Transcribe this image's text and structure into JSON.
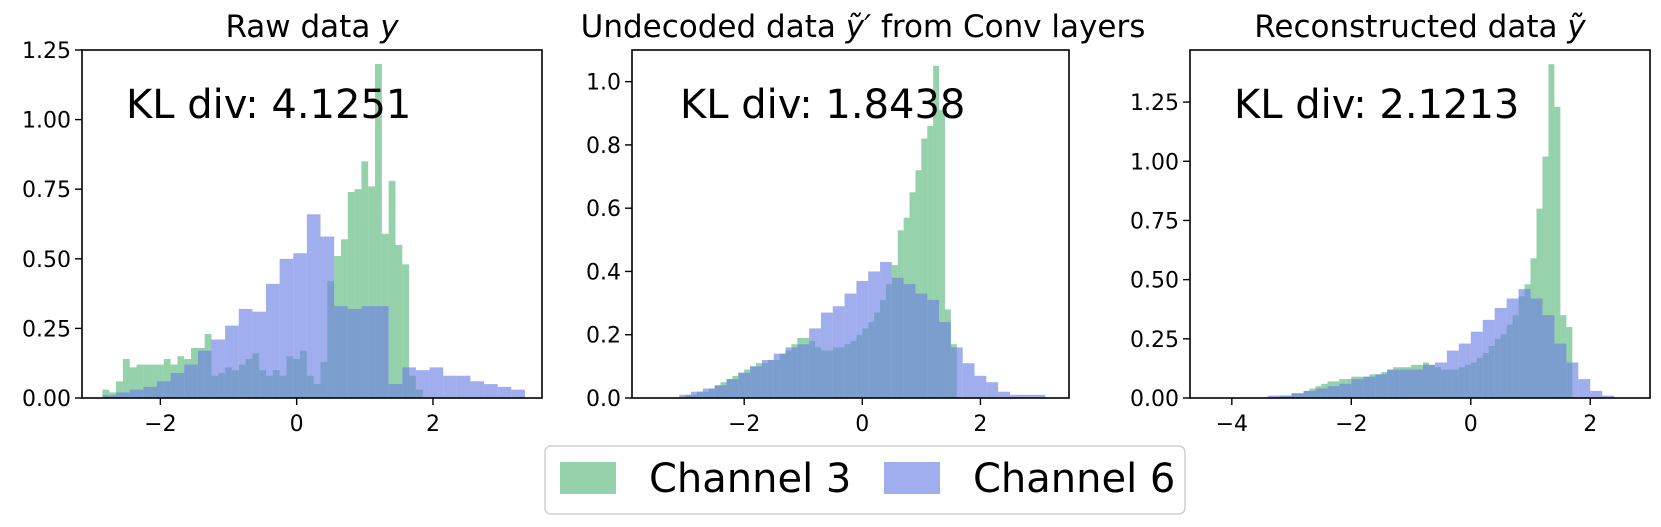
{
  "chart_data": [
    {
      "type": "histogram",
      "title": "Raw data y",
      "title_prefix": "Raw data ",
      "title_symbol": "y",
      "annotation": "KL div: 4.1251",
      "xlim": [
        -3.15,
        3.6
      ],
      "ylim": [
        0,
        1.25
      ],
      "xticks": [
        -2,
        0,
        2
      ],
      "xtick_labels": [
        "−2",
        "0",
        "2"
      ],
      "yticks": [
        0,
        0.25,
        0.5,
        0.75,
        1.0,
        1.25
      ],
      "ytick_labels": [
        "0.00",
        "0.25",
        "0.50",
        "0.75",
        "1.00",
        "1.25"
      ],
      "series": [
        {
          "name": "Channel 3",
          "bin_start": -2.85,
          "bin_width": 0.1,
          "values": [
            0.03,
            0.02,
            0.06,
            0.14,
            0.11,
            0.12,
            0.12,
            0.12,
            0.12,
            0.14,
            0.12,
            0.15,
            0.14,
            0.18,
            0.18,
            0.23,
            0.08,
            0.09,
            0.11,
            0.1,
            0.12,
            0.14,
            0.16,
            0.1,
            0.08,
            0.1,
            0.08,
            0.15,
            0.14,
            0.17,
            0.08,
            0.05,
            0.13,
            0.42,
            0.51,
            0.57,
            0.74,
            0.75,
            0.85,
            0.76,
            1.2,
            0.59,
            0.78,
            0.55,
            0.48,
            0.08,
            0.03
          ]
        },
        {
          "name": "Channel 6",
          "bin_start": -2.85,
          "bin_width": 0.2,
          "values": [
            0.01,
            0.02,
            0.03,
            0.04,
            0.06,
            0.09,
            0.12,
            0.17,
            0.21,
            0.26,
            0.32,
            0.31,
            0.41,
            0.5,
            0.52,
            0.66,
            0.58,
            0.33,
            0.32,
            0.33,
            0.33,
            0.05,
            0.11,
            0.1,
            0.11,
            0.08,
            0.08,
            0.06,
            0.05,
            0.04,
            0.03
          ]
        }
      ]
    },
    {
      "type": "histogram",
      "title": "Undecoded data ỹ′ from Conv layers",
      "title_prefix": "Undecoded data ",
      "title_symbol": "ỹ′",
      "title_suffix": " from Conv layers",
      "annotation": "KL div: 1.8438",
      "xlim": [
        -3.9,
        3.5
      ],
      "ylim": [
        0,
        1.1
      ],
      "xticks": [
        -2,
        0,
        2
      ],
      "xtick_labels": [
        "−2",
        "0",
        "2"
      ],
      "yticks": [
        0,
        0.2,
        0.4,
        0.6,
        0.8,
        1.0
      ],
      "ytick_labels": [
        "0.0",
        "0.2",
        "0.4",
        "0.6",
        "0.8",
        "1.0"
      ],
      "series": [
        {
          "name": "Channel 3",
          "bin_start": -3.0,
          "bin_width": 0.1,
          "values": [
            0.01,
            0.01,
            0.02,
            0.02,
            0.03,
            0.04,
            0.05,
            0.06,
            0.07,
            0.08,
            0.09,
            0.1,
            0.11,
            0.11,
            0.12,
            0.12,
            0.14,
            0.15,
            0.17,
            0.19,
            0.19,
            0.18,
            0.16,
            0.15,
            0.15,
            0.16,
            0.16,
            0.17,
            0.18,
            0.2,
            0.22,
            0.24,
            0.27,
            0.31,
            0.36,
            0.42,
            0.53,
            0.57,
            0.65,
            0.72,
            0.82,
            0.86,
            1.05,
            0.91,
            0.28,
            0.17
          ]
        },
        {
          "name": "Channel 6",
          "bin_start": -3.1,
          "bin_width": 0.2,
          "values": [
            0.01,
            0.02,
            0.03,
            0.04,
            0.06,
            0.08,
            0.1,
            0.12,
            0.14,
            0.16,
            0.17,
            0.22,
            0.27,
            0.29,
            0.33,
            0.37,
            0.4,
            0.43,
            0.38,
            0.36,
            0.33,
            0.31,
            0.24,
            0.16,
            0.11,
            0.07,
            0.05,
            0.02,
            0.01,
            0.01,
            0.01
          ]
        }
      ]
    },
    {
      "type": "histogram",
      "title": "Reconstructed data ỹ",
      "title_prefix": "Reconstructed data ",
      "title_symbol": "ỹ",
      "annotation": "KL div: 2.1213",
      "xlim": [
        -4.7,
        3.0
      ],
      "ylim": [
        0,
        1.47
      ],
      "xticks": [
        -4,
        -2,
        0,
        2
      ],
      "xtick_labels": [
        "−4",
        "−2",
        "0",
        "2"
      ],
      "yticks": [
        0,
        0.25,
        0.5,
        0.75,
        1.0,
        1.25
      ],
      "ytick_labels": [
        "0.00",
        "0.25",
        "0.50",
        "0.75",
        "1.00",
        "1.25"
      ],
      "series": [
        {
          "name": "Channel 3",
          "bin_start": -3.2,
          "bin_width": 0.1,
          "values": [
            0.01,
            0.01,
            0.02,
            0.02,
            0.03,
            0.04,
            0.05,
            0.06,
            0.07,
            0.07,
            0.08,
            0.08,
            0.09,
            0.09,
            0.09,
            0.1,
            0.1,
            0.11,
            0.12,
            0.13,
            0.13,
            0.13,
            0.14,
            0.14,
            0.15,
            0.14,
            0.13,
            0.12,
            0.12,
            0.12,
            0.13,
            0.14,
            0.15,
            0.17,
            0.19,
            0.22,
            0.25,
            0.27,
            0.31,
            0.35,
            0.43,
            0.48,
            0.59,
            0.8,
            1.02,
            1.41,
            1.23,
            0.35,
            0.3
          ]
        },
        {
          "name": "Channel 6",
          "bin_start": -3.4,
          "bin_width": 0.2,
          "values": [
            0.01,
            0.01,
            0.02,
            0.03,
            0.04,
            0.05,
            0.06,
            0.08,
            0.09,
            0.1,
            0.12,
            0.12,
            0.12,
            0.14,
            0.15,
            0.2,
            0.23,
            0.28,
            0.33,
            0.38,
            0.42,
            0.46,
            0.42,
            0.35,
            0.23,
            0.15,
            0.08,
            0.03,
            0.01
          ]
        }
      ]
    }
  ],
  "legend": {
    "placement": "bottom-center",
    "items": [
      {
        "label": "Channel 3",
        "color": "#5cb97d"
      },
      {
        "label": "Channel 6",
        "color": "#6d82e3"
      }
    ]
  },
  "colors": {
    "channel3": "#5cb97d",
    "channel6": "#6d82e3",
    "bar_opacity": 0.65
  }
}
